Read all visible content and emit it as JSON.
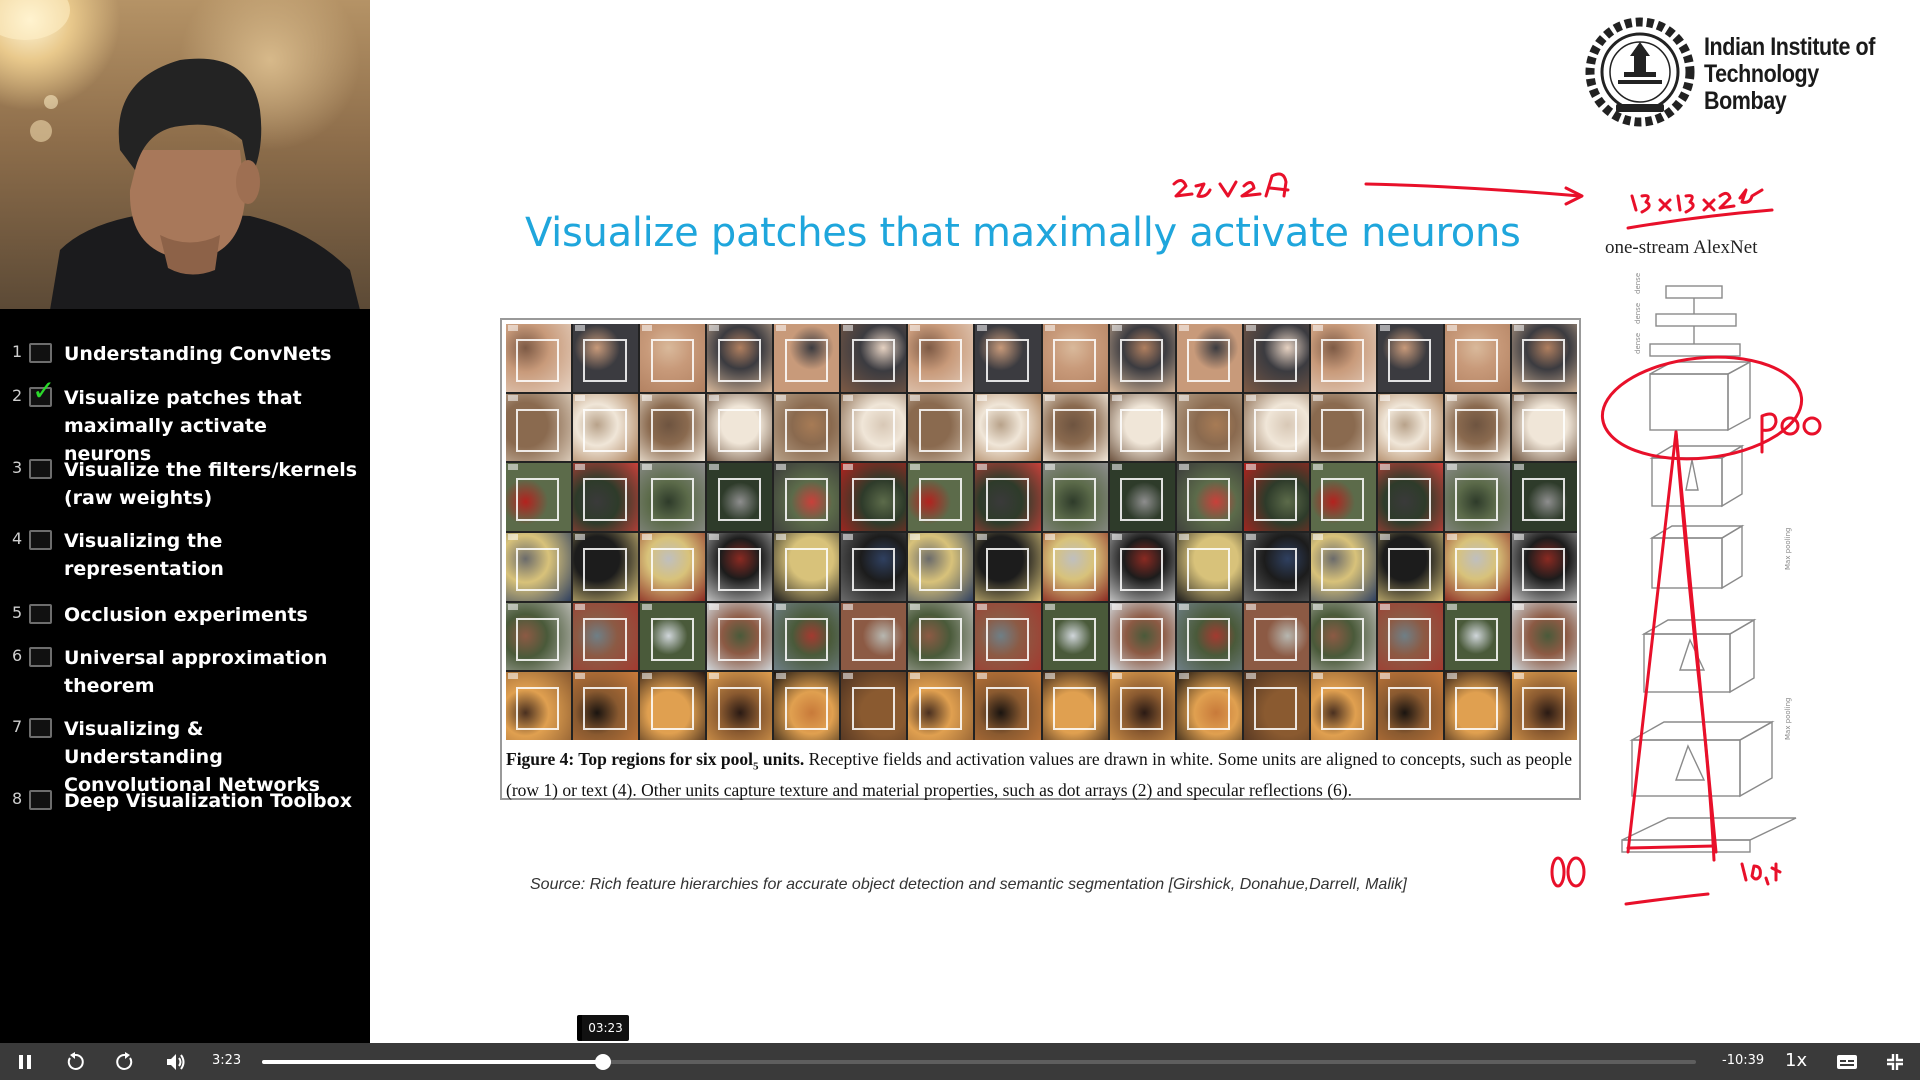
{
  "player": {
    "current_time": "3:23",
    "remaining_time": "-10:39",
    "hover_time": "03:23",
    "speed": "1x",
    "progress_fraction": 0.2375
  },
  "chapters": [
    {
      "num": "1",
      "title": "Understanding ConvNets",
      "checked": false
    },
    {
      "num": "2",
      "title": "Visualize patches that maximally activate neurons",
      "checked": true
    },
    {
      "num": "3",
      "title": "Visualize the filters/kernels (raw weights)",
      "checked": false
    },
    {
      "num": "4",
      "title": "Visualizing the representation",
      "checked": false
    },
    {
      "num": "5",
      "title": "Occlusion experiments",
      "checked": false
    },
    {
      "num": "6",
      "title": "Universal approximation theorem",
      "checked": false
    },
    {
      "num": "7",
      "title": "Visualizing & Understanding Convolutional Networks",
      "checked": false
    },
    {
      "num": "8",
      "title": "Deep Visualization Toolbox",
      "checked": false
    }
  ],
  "slide": {
    "institute_line1": "Indian Institute of",
    "institute_line2": "Technology Bombay",
    "title": "Visualize patches that maximally activate neurons",
    "arch_label": "one-stream AlexNet",
    "figure_caption_bold": "Figure 4: Top regions for six pool",
    "figure_caption_sub": "5",
    "figure_caption_bold2": " units.",
    "figure_caption_rest": " Receptive fields and activation values are drawn in white. Some units are aligned to concepts, such as people (row 1) or text (4). Other units capture texture and material properties, such as dot arrays (2) and specular reflections (6).",
    "source": "Source: Rich feature hierarchies for accurate object detection and semantic segmentation  [Girshick, Donahue,Darrell, Malik]"
  },
  "colors": {
    "title_blue": "#1fa6dc",
    "annotation_red": "#e8102a",
    "check_green": "#2bd92b",
    "control_bar": "#3a3a3a"
  }
}
